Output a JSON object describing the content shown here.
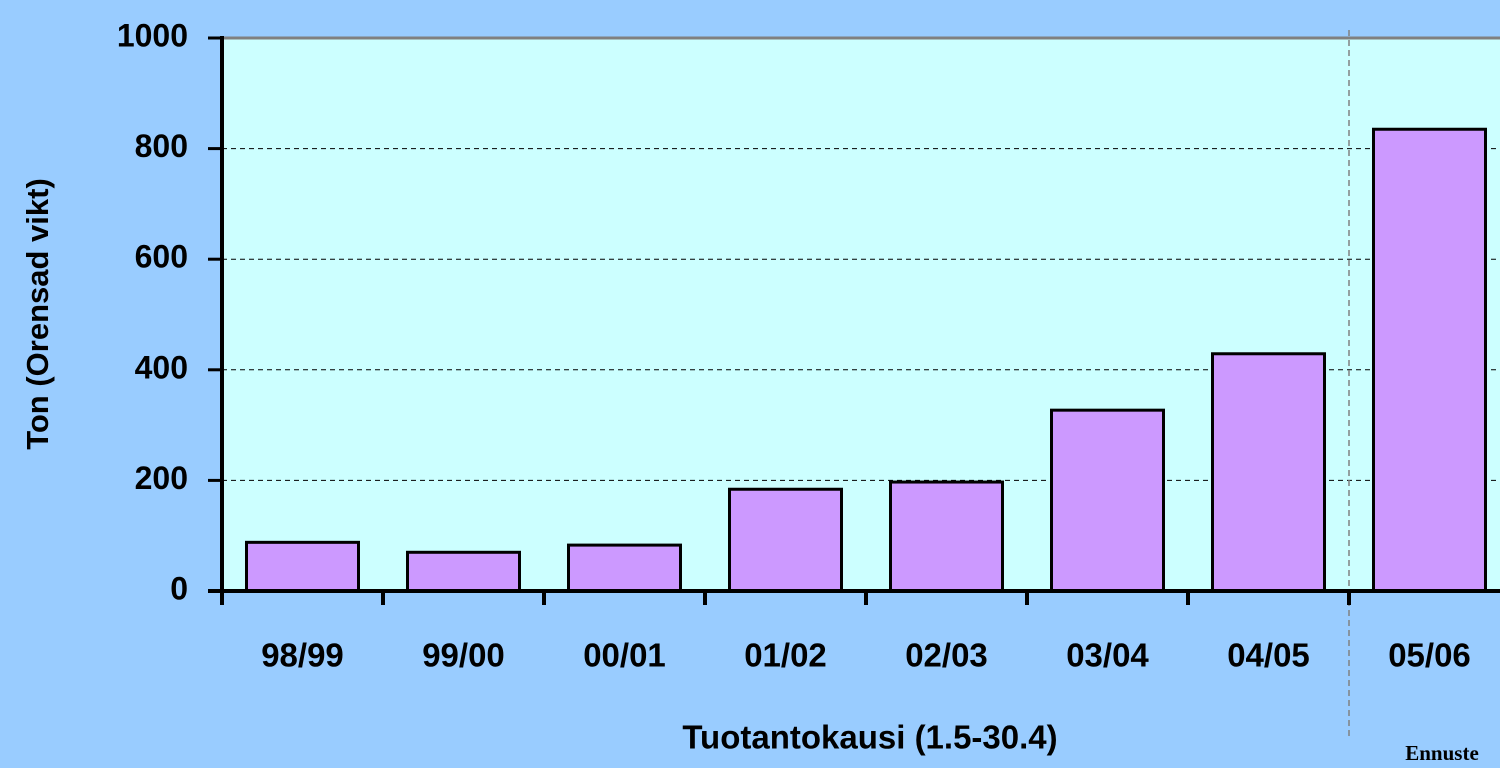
{
  "chart_data": {
    "type": "bar",
    "categories": [
      "98/99",
      "99/00",
      "00/01",
      "01/02",
      "02/03",
      "03/04",
      "04/05",
      "05/06"
    ],
    "values": [
      88,
      70,
      83,
      184,
      197,
      327,
      429,
      835
    ],
    "color": "#cc99ff",
    "ylim": [
      0,
      1000
    ],
    "yticks": [
      0,
      200,
      400,
      600,
      800,
      1000
    ],
    "grid": true,
    "x_label": "Tuotantokausi (1.5-30.4)",
    "y_label": "Ton (Orensad vikt)",
    "annotation": "Ennuste"
  }
}
